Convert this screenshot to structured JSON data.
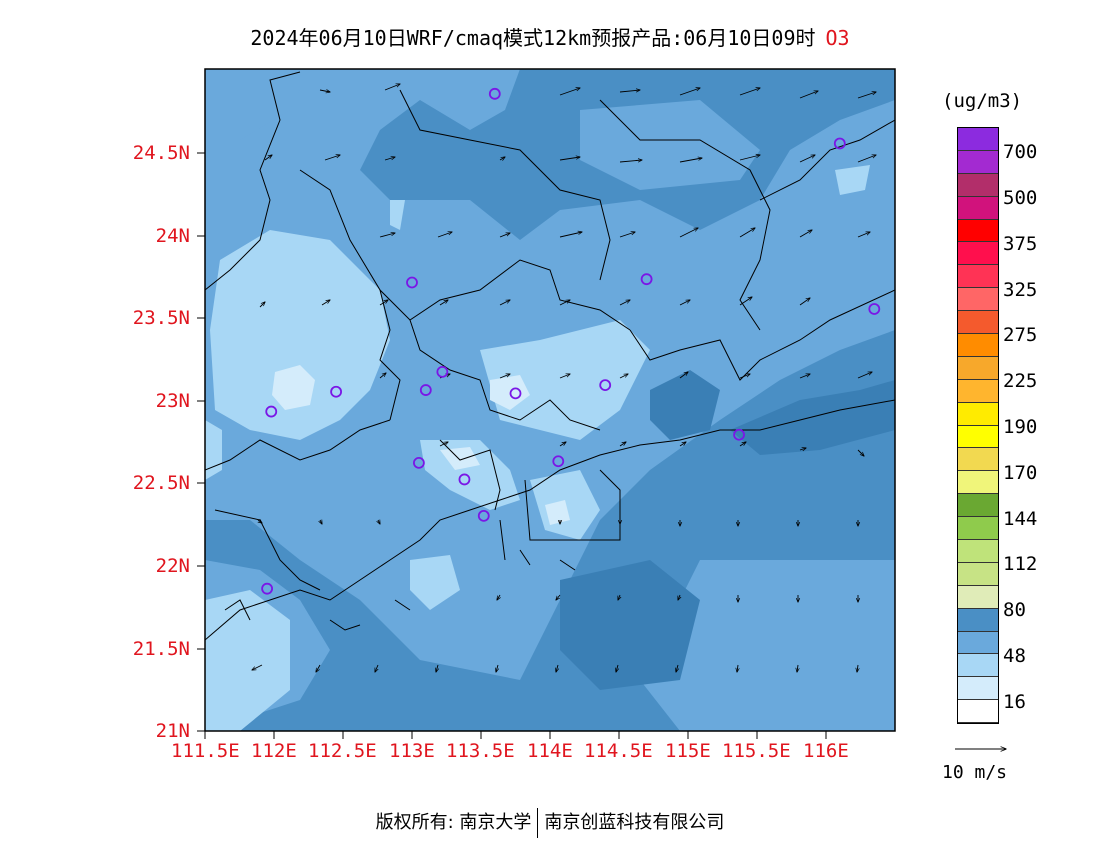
{
  "title": {
    "text": "2024年06月10日WRF/cmaq模式12km预报产品:06月10日09时",
    "species": "O3"
  },
  "map": {
    "lon_range": [
      111.5,
      116.5
    ],
    "lat_range": [
      21,
      25
    ],
    "lat_ticks": [
      "24.5N",
      "24N",
      "23.5N",
      "23N",
      "22.5N",
      "22N",
      "21.5N",
      "21N"
    ],
    "lon_ticks": [
      "111.5E",
      "112E",
      "112.5E",
      "113E",
      "113.5E",
      "114E",
      "114.5E",
      "115E",
      "115.5E",
      "116E"
    ],
    "colors": {
      "background": "#4a8fc5",
      "mid": "#6aa9dc",
      "light": "#a8d7f5",
      "lighter": "#d4ecfb",
      "dark": "#3a7fb5",
      "station": "#7a17e6"
    },
    "stations": [
      [
        113.6,
        24.85
      ],
      [
        116.1,
        24.55
      ],
      [
        113.0,
        23.71
      ],
      [
        114.7,
        23.73
      ],
      [
        116.35,
        23.55
      ],
      [
        112.45,
        23.05
      ],
      [
        113.22,
        23.17
      ],
      [
        113.1,
        23.06
      ],
      [
        113.75,
        23.04
      ],
      [
        114.4,
        23.09
      ],
      [
        111.98,
        22.93
      ],
      [
        113.05,
        22.62
      ],
      [
        113.38,
        22.52
      ],
      [
        114.06,
        22.63
      ],
      [
        115.37,
        22.79
      ],
      [
        113.52,
        22.3
      ],
      [
        111.95,
        21.86
      ]
    ]
  },
  "legend": {
    "unit": "(ug/m3)",
    "colors": [
      "#8c2bdf",
      "#a32ad1",
      "#b22e6a",
      "#d1127c",
      "#ff0000",
      "#ff0f4d",
      "#ff3355",
      "#ff6666",
      "#f45a2d",
      "#ff8c00",
      "#f7a82b",
      "#ffb52e",
      "#ffeb00",
      "#ffff00",
      "#f2d950",
      "#f0f57a",
      "#6aa832",
      "#8fcb4c",
      "#bfe37a",
      "#c7e385",
      "#e0ecb8",
      "#4a8fc5",
      "#6aa9dc",
      "#a8d7f5",
      "#d4ecfb",
      "#ffffff"
    ],
    "labels": [
      "700",
      "500",
      "375",
      "325",
      "275",
      "225",
      "190",
      "170",
      "144",
      "112",
      "80",
      "48",
      "16"
    ],
    "ref_vector": "10 m/s"
  },
  "footer": {
    "left": "版权所有: 南京大学",
    "right": "南京创蓝科技有限公司"
  }
}
